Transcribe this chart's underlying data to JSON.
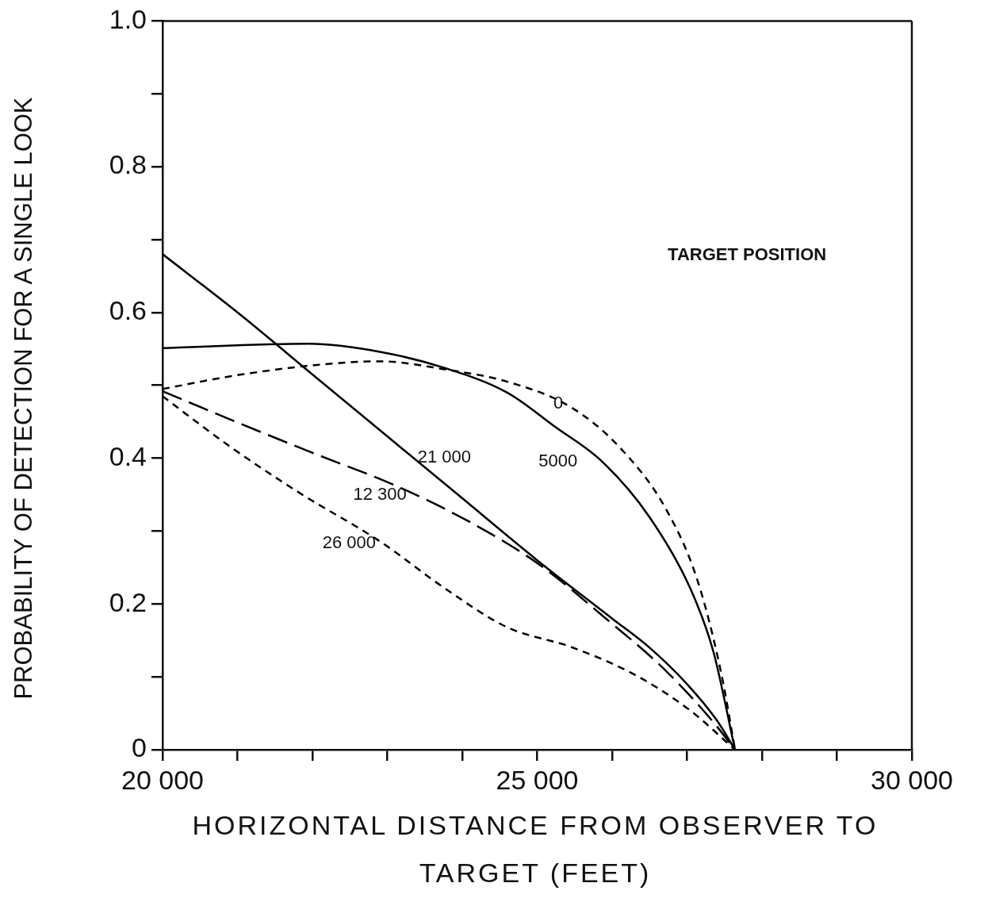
{
  "chart_data": {
    "type": "line",
    "xlabel": "HORIZONTAL DISTANCE FROM OBSERVER TO TARGET (FEET)",
    "ylabel": "PROBABILITY OF DETECTION FOR A SINGLE LOOK",
    "legend_title": "TARGET POSITION",
    "xlim": [
      20000,
      30000
    ],
    "xticks": [
      {
        "value": 20000,
        "label": "20 000"
      },
      {
        "value": 21000,
        "label": null
      },
      {
        "value": 22000,
        "label": null
      },
      {
        "value": 23000,
        "label": null
      },
      {
        "value": 24000,
        "label": null
      },
      {
        "value": 25000,
        "label": "25 000"
      },
      {
        "value": 26000,
        "label": null
      },
      {
        "value": 27000,
        "label": null
      },
      {
        "value": 28000,
        "label": null
      },
      {
        "value": 29000,
        "label": null
      },
      {
        "value": 30000,
        "label": "30 000"
      }
    ],
    "ylim": [
      0,
      1
    ],
    "yticks": [
      0,
      {
        "value": 0.1,
        "label": null
      },
      0.2,
      {
        "value": 0.3,
        "label": null
      },
      0.4,
      {
        "value": 0.5,
        "label": null
      },
      0.6,
      {
        "value": 0.7,
        "label": null
      },
      0.8,
      {
        "value": 0.9,
        "label": null
      },
      {
        "value": 1,
        "label": "1.0"
      }
    ],
    "grid": false,
    "marker": "none",
    "series": [
      {
        "name": "0",
        "color": "#000000",
        "line_style": "dotted",
        "x": [
          20000,
          21000,
          22060,
          22900,
          23760,
          24600,
          25450,
          26090,
          26720,
          27140,
          27460,
          27640
        ],
        "values": [
          0.495,
          0.514,
          0.528,
          0.533,
          0.522,
          0.505,
          0.47,
          0.416,
          0.33,
          0.232,
          0.103,
          0
        ]
      },
      {
        "name": "5000",
        "color": "#000000",
        "line_style": "solid",
        "x": [
          20000,
          21960,
          22900,
          23760,
          24600,
          25240,
          25870,
          26500,
          27040,
          27350,
          27640
        ],
        "values": [
          0.551,
          0.557,
          0.546,
          0.524,
          0.49,
          0.443,
          0.395,
          0.319,
          0.222,
          0.135,
          0
        ]
      },
      {
        "name": "21 000",
        "color": "#000000",
        "line_style": "solid",
        "x": [
          20000,
          21000,
          22000,
          23000,
          24000,
          25000,
          26000,
          26500,
          27000,
          27400,
          27640
        ],
        "values": [
          0.68,
          0.6,
          0.515,
          0.43,
          0.345,
          0.26,
          0.18,
          0.14,
          0.09,
          0.04,
          0
        ]
      },
      {
        "name": "12 300",
        "color": "#000000",
        "line_style": "dashed",
        "x": [
          20000,
          21000,
          22060,
          23120,
          24180,
          25030,
          25870,
          26720,
          27350,
          27640
        ],
        "values": [
          0.492,
          0.449,
          0.405,
          0.362,
          0.308,
          0.254,
          0.184,
          0.108,
          0.038,
          0
        ]
      },
      {
        "name": "26 000",
        "color": "#000000",
        "line_style": "dotted",
        "x": [
          20000,
          20900,
          21850,
          22900,
          23760,
          24600,
          25450,
          26300,
          27040,
          27640
        ],
        "values": [
          0.485,
          0.416,
          0.351,
          0.286,
          0.222,
          0.168,
          0.141,
          0.103,
          0.054,
          0
        ]
      }
    ]
  }
}
